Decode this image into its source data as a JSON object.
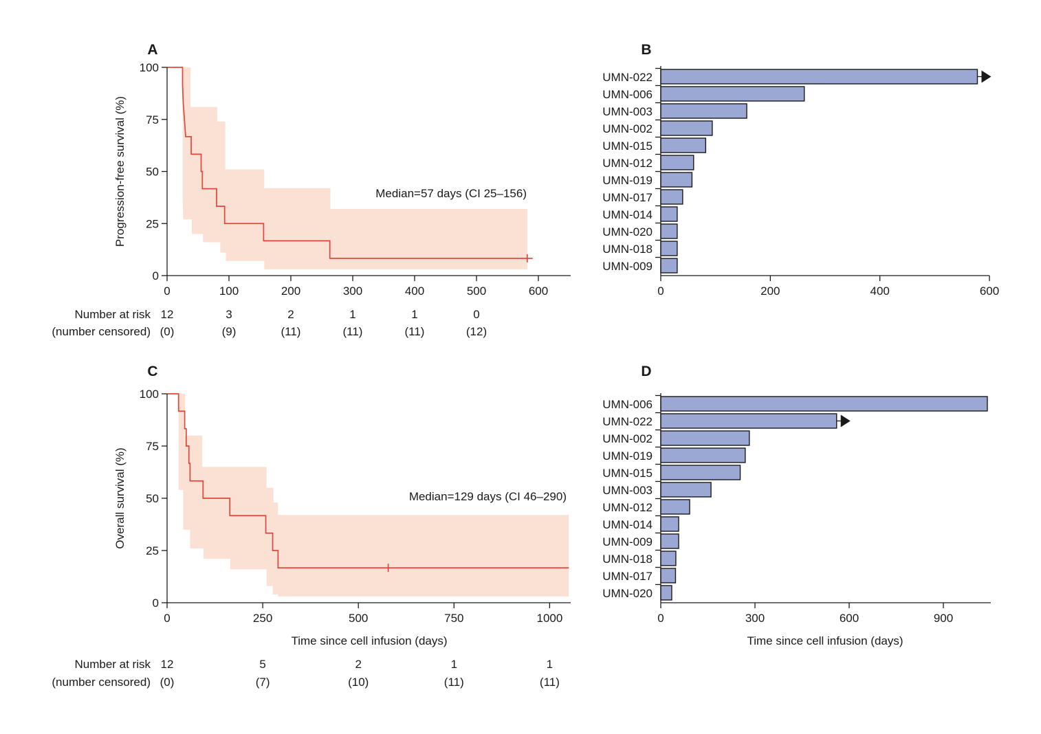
{
  "chart_data": [
    {
      "panel": "A",
      "type": "line",
      "subtype": "kaplan-meier",
      "ylabel": "Progression-free survival (%)",
      "xlabel": "",
      "xlim": [
        0,
        650
      ],
      "ylim": [
        0,
        100
      ],
      "xticks": [
        0,
        100,
        200,
        300,
        400,
        500,
        600
      ],
      "yticks": [
        0,
        25,
        50,
        75,
        100
      ],
      "annotation": "Median=57 days (CI 25–156)",
      "curve": [
        [
          0,
          100
        ],
        [
          25,
          100
        ],
        [
          25,
          91.7
        ],
        [
          26,
          83.3
        ],
        [
          28,
          75
        ],
        [
          30,
          66.7
        ],
        [
          39,
          66.7
        ],
        [
          39,
          58.3
        ],
        [
          55,
          58.3
        ],
        [
          55,
          50
        ],
        [
          57,
          50
        ],
        [
          57,
          41.7
        ],
        [
          80,
          41.7
        ],
        [
          80,
          33.3
        ],
        [
          93,
          33.3
        ],
        [
          93,
          25
        ],
        [
          156,
          25
        ],
        [
          156,
          16.7
        ],
        [
          263,
          16.7
        ],
        [
          263,
          8.3
        ],
        [
          582,
          8.3
        ]
      ],
      "ci_upper": [
        [
          25,
          100
        ],
        [
          38,
          100
        ],
        [
          38,
          81
        ],
        [
          59,
          81
        ],
        [
          59,
          81
        ],
        [
          81,
          81
        ],
        [
          81,
          74
        ],
        [
          94,
          74
        ],
        [
          94,
          51
        ],
        [
          157,
          51
        ],
        [
          157,
          42
        ],
        [
          264,
          42
        ],
        [
          264,
          32
        ],
        [
          582,
          32
        ]
      ],
      "ci_lower": [
        [
          25,
          40
        ],
        [
          26,
          27
        ],
        [
          40,
          27
        ],
        [
          40,
          20
        ],
        [
          58,
          20
        ],
        [
          58,
          16
        ],
        [
          86,
          16
        ],
        [
          86,
          11
        ],
        [
          95,
          11
        ],
        [
          95,
          7
        ],
        [
          157,
          7
        ],
        [
          157,
          3
        ],
        [
          582,
          3
        ]
      ],
      "censored": [
        [
          582,
          8.3
        ]
      ],
      "risk_table": {
        "label1": "Number at risk",
        "label2": "(number censored)",
        "times": [
          0,
          100,
          200,
          300,
          400,
          500
        ],
        "at_risk": [
          "12",
          "3",
          "2",
          "1",
          "1",
          "0"
        ],
        "censored": [
          "(0)",
          "(9)",
          "(11)",
          "(11)",
          "(11)",
          "(12)"
        ]
      }
    },
    {
      "panel": "B",
      "type": "bar",
      "orientation": "horizontal",
      "xlabel": "",
      "xlim": [
        0,
        600
      ],
      "xticks": [
        0,
        200,
        400,
        600
      ],
      "categories": [
        "UMN-022",
        "UMN-006",
        "UMN-003",
        "UMN-002",
        "UMN-015",
        "UMN-012",
        "UMN-019",
        "UMN-017",
        "UMN-014",
        "UMN-020",
        "UMN-018",
        "UMN-009"
      ],
      "values": [
        578,
        262,
        157,
        94,
        82,
        60,
        57,
        40,
        30,
        30,
        30,
        30
      ],
      "ongoing": [
        true,
        false,
        false,
        false,
        false,
        false,
        false,
        false,
        false,
        false,
        false,
        false
      ]
    },
    {
      "panel": "C",
      "type": "line",
      "subtype": "kaplan-meier",
      "ylabel": "Overall survival (%)",
      "xlabel": "Time since cell infusion (days)",
      "xlim": [
        0,
        1050
      ],
      "ylim": [
        0,
        100
      ],
      "xticks": [
        0,
        250,
        500,
        750,
        1000
      ],
      "yticks": [
        0,
        25,
        50,
        75,
        100
      ],
      "annotation": "Median=129 days (CI 46–290)",
      "curve": [
        [
          0,
          100
        ],
        [
          30,
          100
        ],
        [
          30,
          91.7
        ],
        [
          46,
          91.7
        ],
        [
          46,
          83.3
        ],
        [
          50,
          83.3
        ],
        [
          50,
          75
        ],
        [
          57,
          75
        ],
        [
          57,
          66.7
        ],
        [
          60,
          66.7
        ],
        [
          60,
          58.3
        ],
        [
          94,
          58.3
        ],
        [
          94,
          50
        ],
        [
          164,
          50
        ],
        [
          164,
          41.7
        ],
        [
          258,
          41.7
        ],
        [
          258,
          33.3
        ],
        [
          276,
          33.3
        ],
        [
          276,
          25
        ],
        [
          290,
          25
        ],
        [
          290,
          16.7
        ],
        [
          1050,
          16.7
        ]
      ],
      "ci_upper": [
        [
          30,
          100
        ],
        [
          47,
          100
        ],
        [
          47,
          80
        ],
        [
          92,
          80
        ],
        [
          92,
          65
        ],
        [
          260,
          65
        ],
        [
          260,
          55
        ],
        [
          278,
          55
        ],
        [
          278,
          48
        ],
        [
          290,
          48
        ],
        [
          290,
          42
        ],
        [
          1050,
          42
        ]
      ],
      "ci_lower": [
        [
          30,
          54
        ],
        [
          42,
          54
        ],
        [
          42,
          35
        ],
        [
          60,
          35
        ],
        [
          60,
          26
        ],
        [
          95,
          26
        ],
        [
          95,
          21
        ],
        [
          165,
          21
        ],
        [
          165,
          16
        ],
        [
          260,
          16
        ],
        [
          260,
          8
        ],
        [
          276,
          8
        ],
        [
          276,
          4
        ],
        [
          290,
          4
        ],
        [
          290,
          3
        ],
        [
          1050,
          3
        ]
      ],
      "censored": [
        [
          578,
          16.7
        ]
      ],
      "risk_table": {
        "label1": "Number at risk",
        "label2": "(number censored)",
        "times": [
          0,
          250,
          500,
          750,
          1000
        ],
        "at_risk": [
          "12",
          "5",
          "2",
          "1",
          "1"
        ],
        "censored": [
          "(0)",
          "(7)",
          "(10)",
          "(11)",
          "(11)"
        ]
      }
    },
    {
      "panel": "D",
      "type": "bar",
      "orientation": "horizontal",
      "xlabel": "Time since cell infusion (days)",
      "xlim": [
        0,
        1050
      ],
      "xticks": [
        0,
        300,
        600,
        900
      ],
      "categories": [
        "UMN-006",
        "UMN-022",
        "UMN-002",
        "UMN-019",
        "UMN-015",
        "UMN-003",
        "UMN-012",
        "UMN-014",
        "UMN-009",
        "UMN-018",
        "UMN-017",
        "UMN-020"
      ],
      "values": [
        1040,
        560,
        282,
        269,
        253,
        160,
        92,
        57,
        57,
        48,
        47,
        35
      ],
      "ongoing": [
        false,
        true,
        false,
        false,
        false,
        false,
        false,
        false,
        false,
        false,
        false,
        false
      ]
    }
  ],
  "colors": {
    "km_line": "#e0463a",
    "ci_band": "#fbe1d4",
    "bar_fill": "#9ba8d3",
    "ink": "#1a1a1a"
  }
}
